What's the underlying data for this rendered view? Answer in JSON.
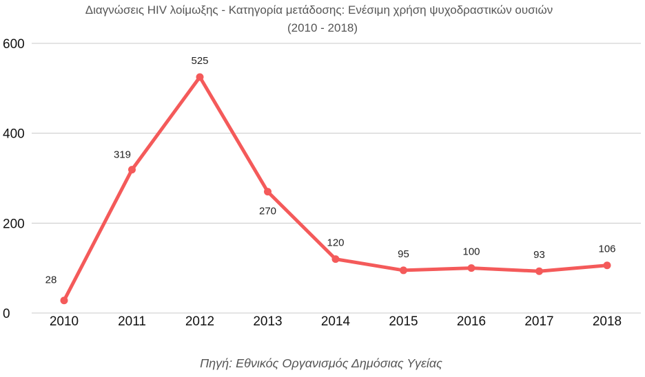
{
  "chart_data": {
    "type": "line",
    "title": "Διαγνώσεις HIV λοίμωξης - Κατηγορία μετάδοσης: Ενέσιμη χρήση ψυχοδραστικών ουσιών",
    "subtitle": "(2010 - 2018)",
    "source": "Πηγή: Εθνικός Οργανισμός Δημόσιας Υγείας",
    "categories": [
      "2010",
      "2011",
      "2012",
      "2013",
      "2014",
      "2015",
      "2016",
      "2017",
      "2018"
    ],
    "values": [
      28,
      319,
      525,
      270,
      120,
      95,
      100,
      93,
      106
    ],
    "data_labels": [
      "28",
      "319",
      "525",
      "270",
      "120",
      "95",
      "100",
      "93",
      "106"
    ],
    "ylim": [
      0,
      600
    ],
    "yticks": [
      0,
      200,
      400,
      600
    ],
    "ytick_labels": [
      "0",
      "200",
      "400",
      "600"
    ],
    "grid": true,
    "legend": "none",
    "line_color": "#f45a5a",
    "grid_color": "#c8c8c8"
  }
}
